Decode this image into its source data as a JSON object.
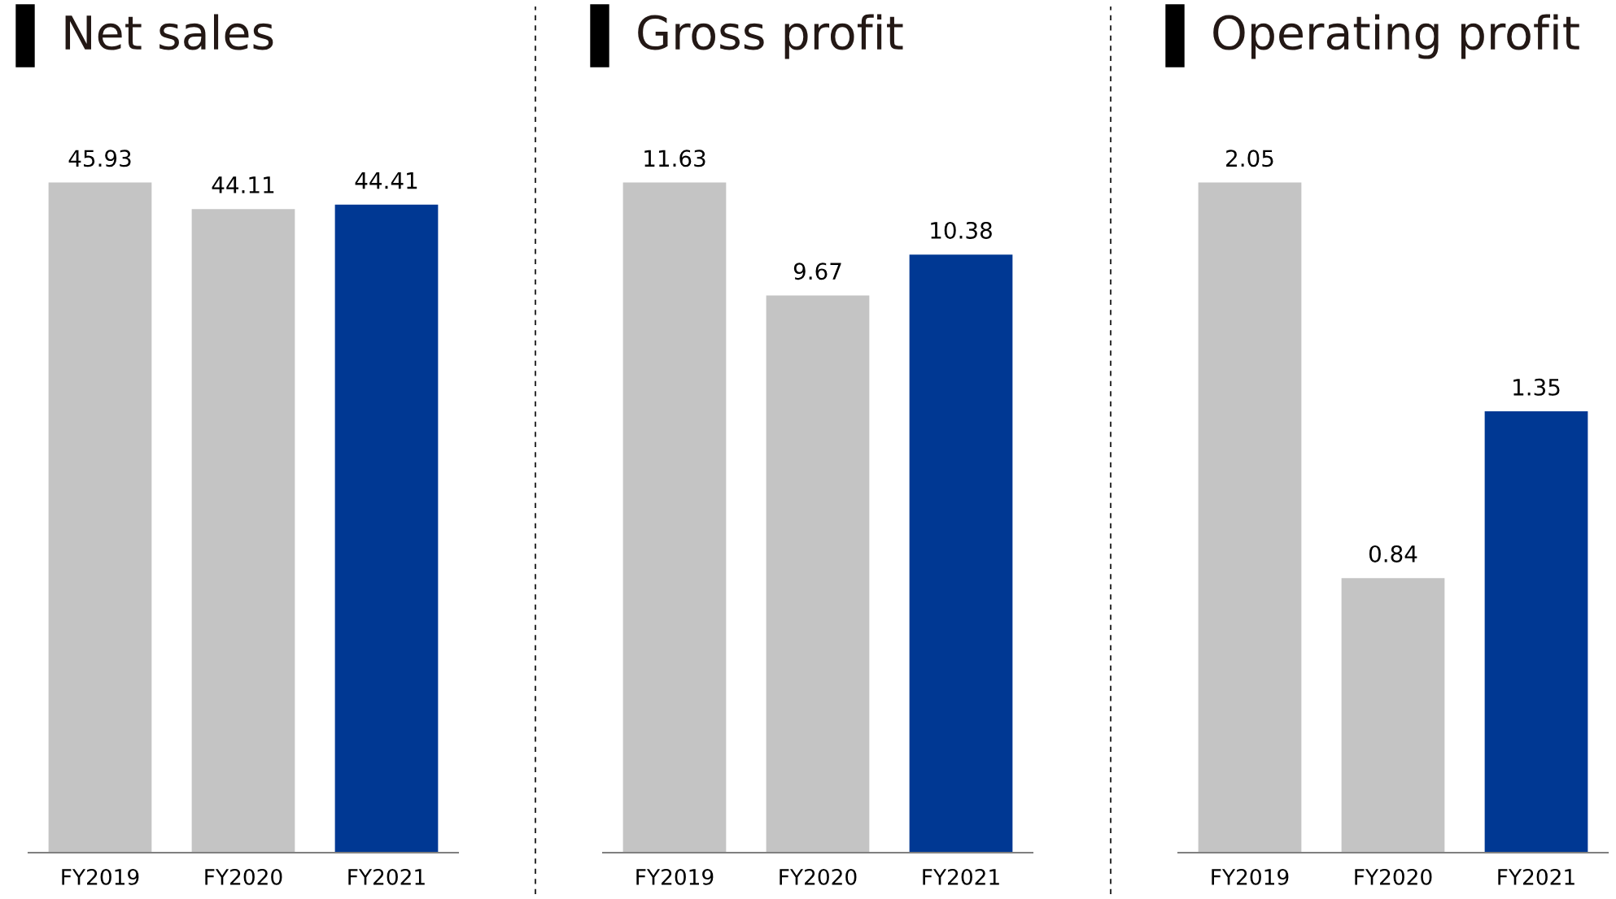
{
  "chart_data": [
    {
      "type": "bar",
      "title": "Net sales",
      "categories": [
        "FY2019",
        "FY2020",
        "FY2021"
      ],
      "values": [
        45.93,
        44.11,
        44.41
      ],
      "colors": [
        "#c4c4c4",
        "#c4c4c4",
        "#003893"
      ],
      "data_labels": true,
      "tick_labels": "x",
      "grid": false,
      "legend": false
    },
    {
      "type": "bar",
      "title": "Gross profit",
      "categories": [
        "FY2019",
        "FY2020",
        "FY2021"
      ],
      "values": [
        11.63,
        9.67,
        10.38
      ],
      "colors": [
        "#c4c4c4",
        "#c4c4c4",
        "#003893"
      ],
      "data_labels": true,
      "tick_labels": "x",
      "grid": false,
      "legend": false
    },
    {
      "type": "bar",
      "title": "Operating profit",
      "categories": [
        "FY2019",
        "FY2020",
        "FY2021"
      ],
      "values": [
        2.05,
        0.84,
        1.35
      ],
      "colors": [
        "#c4c4c4",
        "#c4c4c4",
        "#003893"
      ],
      "data_labels": true,
      "tick_labels": "x",
      "grid": false,
      "legend": false
    }
  ]
}
